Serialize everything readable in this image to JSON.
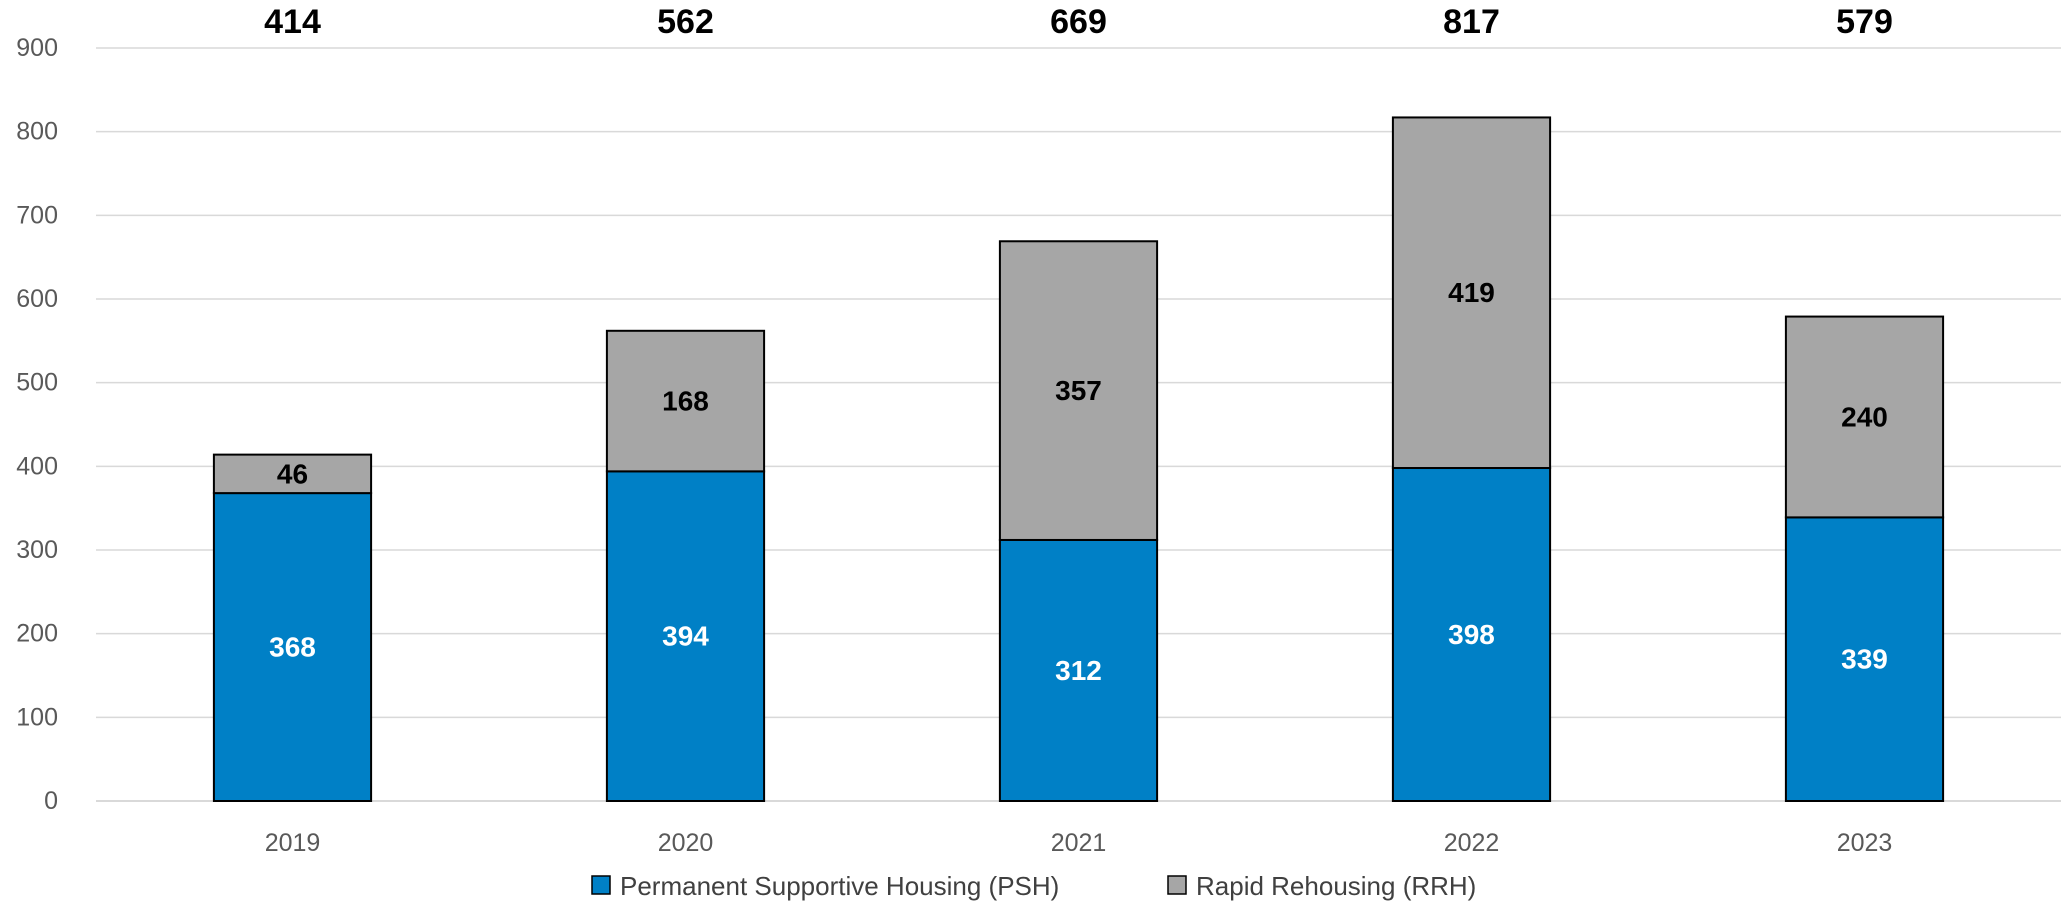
{
  "chart_data": {
    "type": "bar",
    "stacked": true,
    "title": "",
    "xlabel": "",
    "ylabel": "",
    "categories": [
      "2019",
      "2020",
      "2021",
      "2022",
      "2023"
    ],
    "series": [
      {
        "name": "Permanent Supportive Housing (PSH)",
        "values": [
          368,
          394,
          312,
          398,
          339
        ],
        "color": "#0080C6",
        "label_color": "#FFFFFF"
      },
      {
        "name": "Rapid Rehousing (RRH)",
        "values": [
          46,
          168,
          357,
          419,
          240
        ],
        "color": "#A6A6A6",
        "label_color": "#000000"
      }
    ],
    "totals": [
      414,
      562,
      669,
      817,
      579
    ],
    "ylim": [
      0,
      900
    ],
    "yticks": [
      0,
      100,
      200,
      300,
      400,
      500,
      600,
      700,
      800,
      900
    ],
    "grid": true,
    "legend_position": "bottom"
  }
}
